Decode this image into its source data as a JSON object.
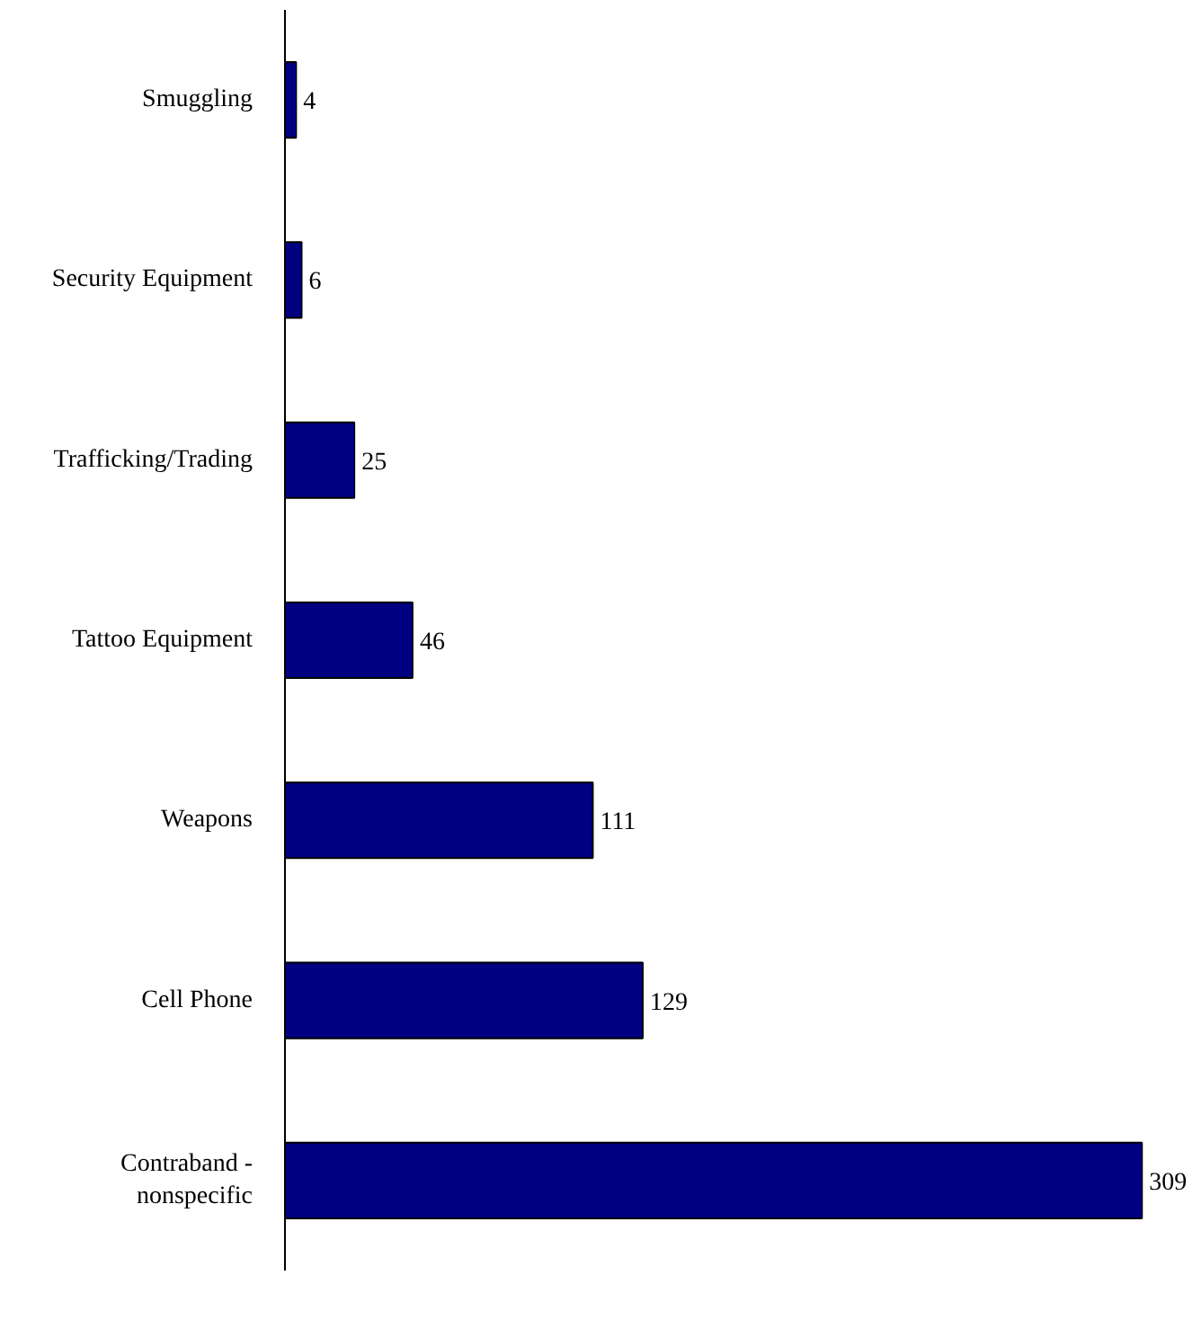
{
  "chart_data": {
    "type": "bar",
    "orientation": "horizontal",
    "categories": [
      "Smuggling",
      "Security Equipment",
      "Trafficking/Trading",
      "Tattoo Equipment",
      "Weapons",
      "Cell Phone",
      "Contraband - nonspecific"
    ],
    "values": [
      4,
      6,
      25,
      46,
      111,
      129,
      309
    ],
    "color": "#000080",
    "data_labels": true,
    "grid": false
  }
}
